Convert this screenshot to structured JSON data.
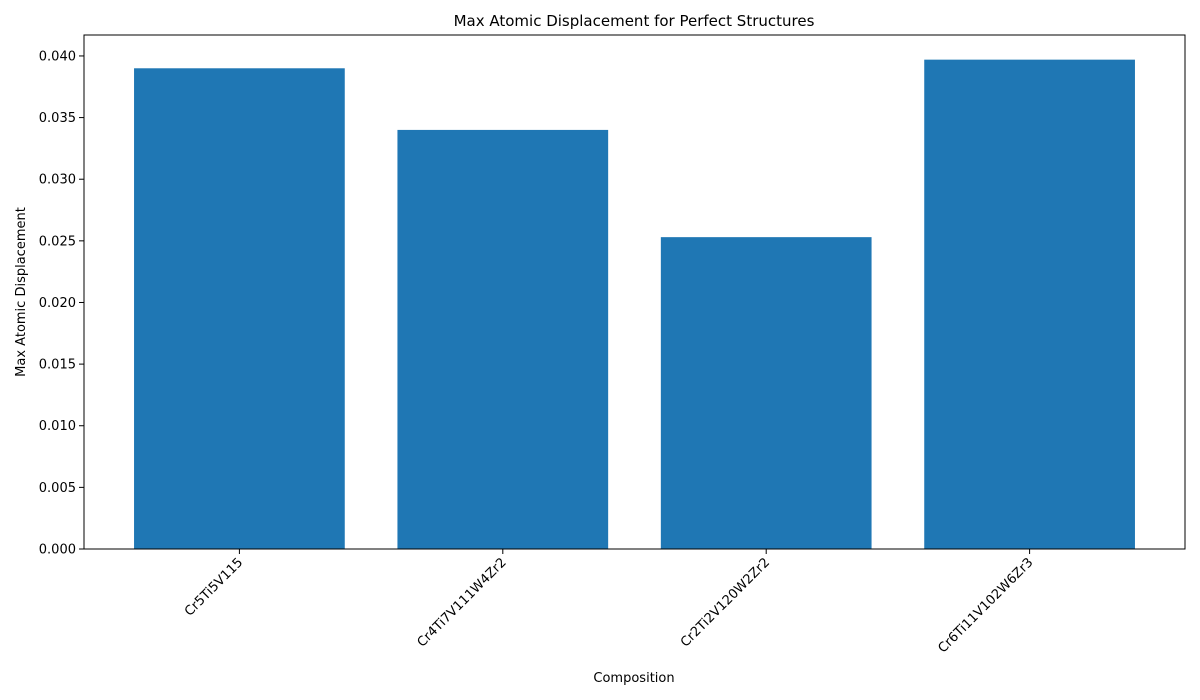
{
  "chart_data": {
    "type": "bar",
    "title": "Max Atomic Displacement for Perfect Structures",
    "xlabel": "Composition",
    "ylabel": "Max Atomic Displacement",
    "categories": [
      "Cr5Ti5V115",
      "Cr4Ti7V111W4Zr2",
      "Cr2Ti2V120W2Zr2",
      "Cr6Ti11V102W6Zr3"
    ],
    "values": [
      0.039,
      0.034,
      0.0253,
      0.0397
    ],
    "ylim": [
      0,
      0.0417
    ],
    "yticks": [
      "0.000",
      "0.005",
      "0.010",
      "0.015",
      "0.020",
      "0.025",
      "0.030",
      "0.035",
      "0.040"
    ],
    "bar_color": "#1f77b4",
    "grid": false,
    "legend": "none"
  }
}
